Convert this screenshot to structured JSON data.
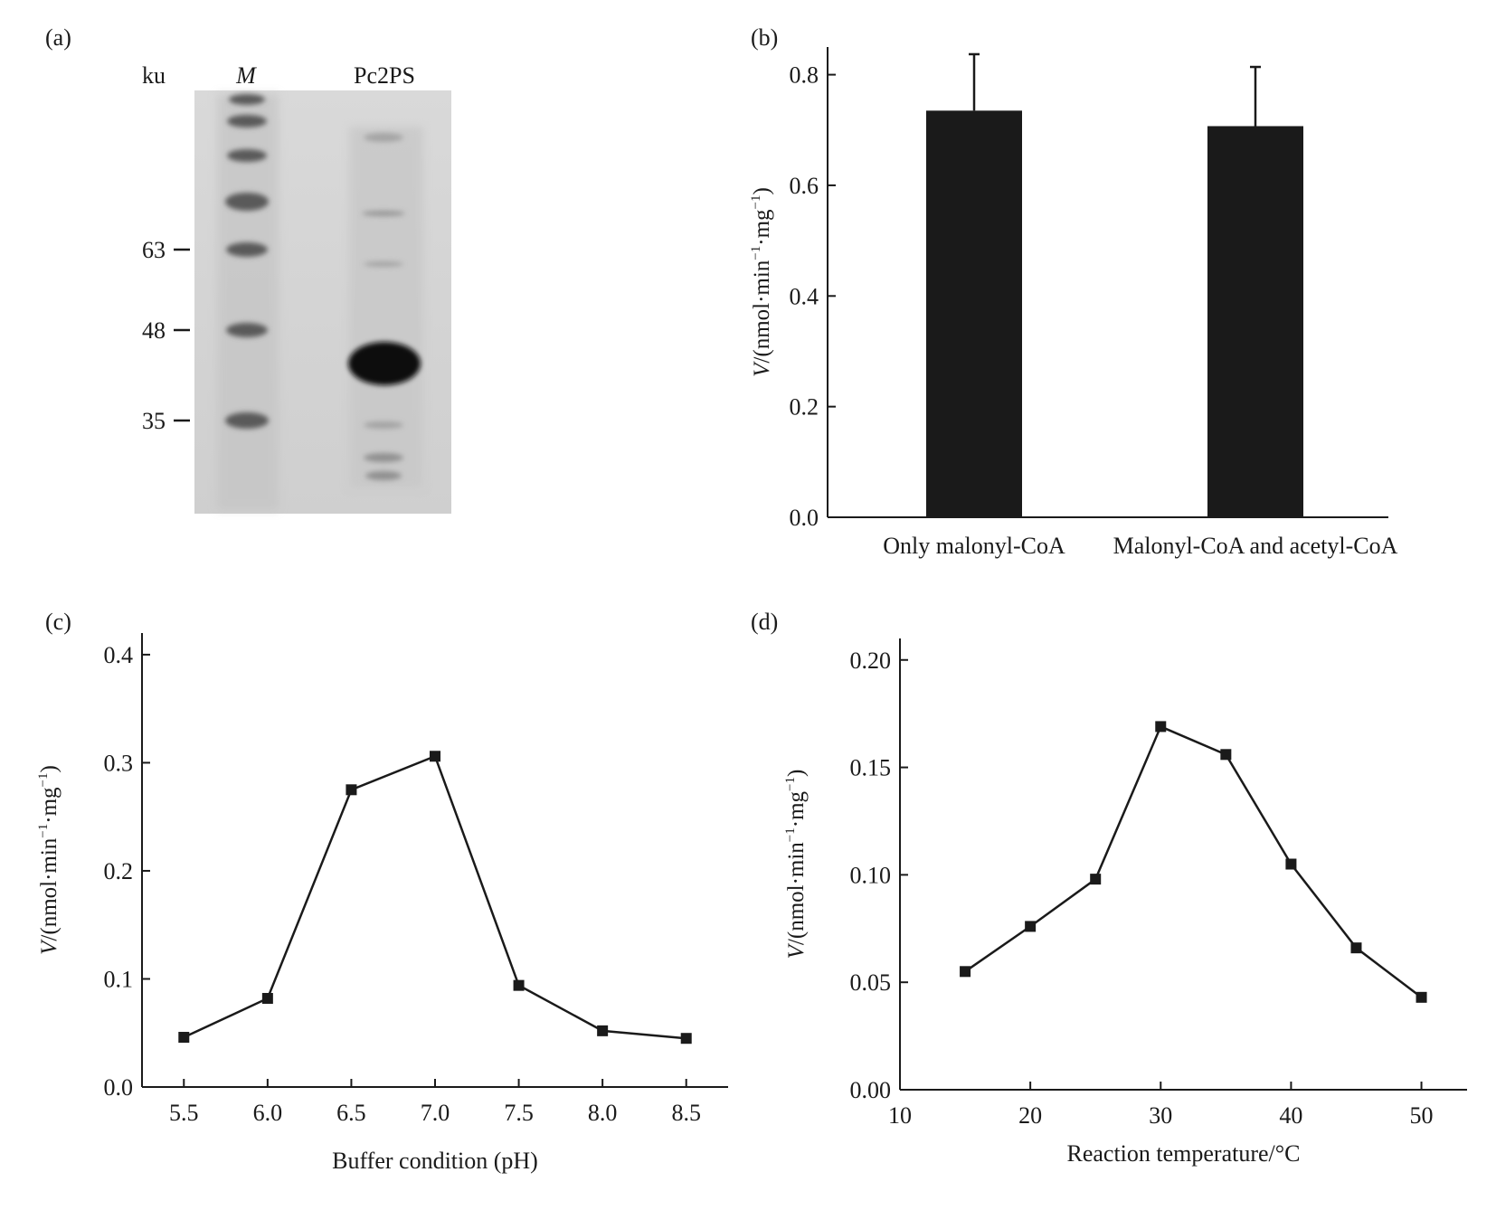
{
  "panels": {
    "a": {
      "label": "(a)"
    },
    "b": {
      "label": "(b)"
    },
    "c": {
      "label": "(c)"
    },
    "d": {
      "label": "(d)"
    }
  },
  "gel": {
    "unit_label": "ku",
    "lane_labels": [
      "M",
      "Pc2PS"
    ],
    "markers": [
      {
        "label": "63",
        "value": 63
      },
      {
        "label": "48",
        "value": 48
      },
      {
        "label": "35",
        "value": 35
      }
    ]
  },
  "chart_data": [
    {
      "id": "b",
      "type": "bar",
      "categories": [
        "Only malonyl-CoA",
        "Malonyl-CoA and acetyl-CoA"
      ],
      "values": [
        0.735,
        0.707
      ],
      "errors": [
        0.102,
        0.107
      ],
      "ylim": [
        0,
        0.85
      ],
      "yticks": [
        0,
        0.2,
        0.4,
        0.6,
        0.8
      ],
      "ytick_labels": [
        "0.0",
        "0.2",
        "0.4",
        "0.6",
        "0.8"
      ],
      "ylabel_italic": "V",
      "ylabel_rest": "/(nmol·min",
      "ylabel_sup": "−1",
      "ylabel_tail": "·mg",
      "ylabel_sup2": "−1",
      "ylabel_end": ")",
      "bar_color": "#1a1a1a"
    },
    {
      "id": "c",
      "type": "line",
      "x": [
        5.5,
        6.0,
        6.5,
        7.0,
        7.5,
        8.0,
        8.5
      ],
      "values": [
        0.046,
        0.082,
        0.275,
        0.306,
        0.094,
        0.052,
        0.045
      ],
      "xlim": [
        5.25,
        8.75
      ],
      "xticks": [
        5.5,
        6.0,
        6.5,
        7.0,
        7.5,
        8.0,
        8.5
      ],
      "xtick_labels": [
        "5.5",
        "6.0",
        "6.5",
        "7.0",
        "7.5",
        "8.0",
        "8.5"
      ],
      "ylim": [
        0,
        0.42
      ],
      "yticks": [
        0,
        0.1,
        0.2,
        0.3,
        0.4
      ],
      "ytick_labels": [
        "0.0",
        "0.1",
        "0.2",
        "0.3",
        "0.4"
      ],
      "xlabel": "Buffer condition (pH)",
      "ylabel_italic": "V",
      "ylabel_rest": "/(nmol·min",
      "ylabel_sup": "−1",
      "ylabel_tail": "·mg",
      "ylabel_sup2": "−1",
      "ylabel_end": ")"
    },
    {
      "id": "d",
      "type": "line",
      "x": [
        15,
        20,
        25,
        30,
        35,
        40,
        45,
        50
      ],
      "values": [
        0.055,
        0.076,
        0.098,
        0.169,
        0.156,
        0.105,
        0.066,
        0.043
      ],
      "xlim": [
        10,
        53.5
      ],
      "xticks": [
        10,
        20,
        30,
        40,
        50
      ],
      "xtick_labels": [
        "10",
        "20",
        "30",
        "40",
        "50"
      ],
      "ylim": [
        0,
        0.21
      ],
      "yticks": [
        0,
        0.05,
        0.1,
        0.15,
        0.2
      ],
      "ytick_labels": [
        "0.00",
        "0.05",
        "0.10",
        "0.15",
        "0.20"
      ],
      "xlabel": "Reaction temperature/°C",
      "ylabel_italic": "V",
      "ylabel_rest": "/(nmol·min",
      "ylabel_sup": "−1",
      "ylabel_tail": "·mg",
      "ylabel_sup2": "−1",
      "ylabel_end": ")"
    }
  ]
}
